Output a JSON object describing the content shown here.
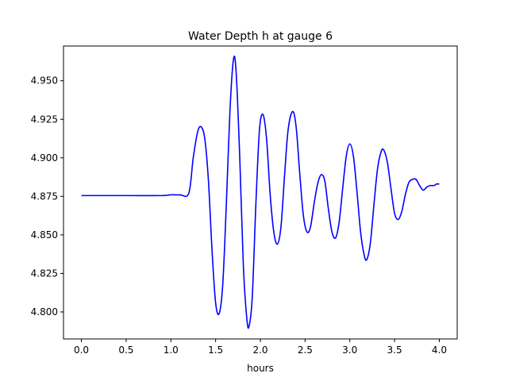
{
  "chart_data": {
    "type": "line",
    "title": "Water Depth h at gauge 6",
    "xlabel": "hours",
    "ylabel": "",
    "xlim": [
      -0.2,
      4.2
    ],
    "ylim": [
      4.7825,
      4.9725
    ],
    "xticks": [
      0.0,
      0.5,
      1.0,
      1.5,
      2.0,
      2.5,
      3.0,
      3.5,
      4.0
    ],
    "xtick_labels": [
      "0.0",
      "0.5",
      "1.0",
      "1.5",
      "2.0",
      "2.5",
      "3.0",
      "3.5",
      "4.0"
    ],
    "yticks": [
      4.8,
      4.825,
      4.85,
      4.875,
      4.9,
      4.925,
      4.95
    ],
    "ytick_labels": [
      "4.800",
      "4.825",
      "4.850",
      "4.875",
      "4.900",
      "4.925",
      "4.950"
    ],
    "grid": false,
    "series": [
      {
        "name": "",
        "color": "#0000ff",
        "points": [
          [
            0.0,
            4.8755
          ],
          [
            0.5,
            4.8755
          ],
          [
            0.9,
            4.8755
          ],
          [
            1.0,
            4.876
          ],
          [
            1.1,
            4.876
          ],
          [
            1.2,
            4.877
          ],
          [
            1.25,
            4.9
          ],
          [
            1.3,
            4.917
          ],
          [
            1.34,
            4.92
          ],
          [
            1.38,
            4.912
          ],
          [
            1.42,
            4.885
          ],
          [
            1.46,
            4.84
          ],
          [
            1.5,
            4.806
          ],
          [
            1.54,
            4.799
          ],
          [
            1.58,
            4.818
          ],
          [
            1.62,
            4.87
          ],
          [
            1.66,
            4.93
          ],
          [
            1.7,
            4.964
          ],
          [
            1.73,
            4.955
          ],
          [
            1.77,
            4.9
          ],
          [
            1.81,
            4.83
          ],
          [
            1.85,
            4.795
          ],
          [
            1.875,
            4.791
          ],
          [
            1.91,
            4.81
          ],
          [
            1.95,
            4.87
          ],
          [
            1.99,
            4.918
          ],
          [
            2.03,
            4.928
          ],
          [
            2.07,
            4.912
          ],
          [
            2.11,
            4.876
          ],
          [
            2.15,
            4.852
          ],
          [
            2.19,
            4.844
          ],
          [
            2.23,
            4.855
          ],
          [
            2.27,
            4.888
          ],
          [
            2.31,
            4.918
          ],
          [
            2.36,
            4.93
          ],
          [
            2.4,
            4.92
          ],
          [
            2.44,
            4.89
          ],
          [
            2.48,
            4.863
          ],
          [
            2.52,
            4.852
          ],
          [
            2.56,
            4.855
          ],
          [
            2.6,
            4.87
          ],
          [
            2.64,
            4.883
          ],
          [
            2.68,
            4.889
          ],
          [
            2.72,
            4.885
          ],
          [
            2.76,
            4.867
          ],
          [
            2.8,
            4.852
          ],
          [
            2.84,
            4.848
          ],
          [
            2.88,
            4.858
          ],
          [
            2.92,
            4.88
          ],
          [
            2.96,
            4.901
          ],
          [
            3.0,
            4.909
          ],
          [
            3.04,
            4.901
          ],
          [
            3.08,
            4.878
          ],
          [
            3.12,
            4.852
          ],
          [
            3.16,
            4.837
          ],
          [
            3.19,
            4.834
          ],
          [
            3.23,
            4.845
          ],
          [
            3.27,
            4.87
          ],
          [
            3.31,
            4.893
          ],
          [
            3.35,
            4.904
          ],
          [
            3.38,
            4.905
          ],
          [
            3.42,
            4.897
          ],
          [
            3.46,
            4.88
          ],
          [
            3.5,
            4.864
          ],
          [
            3.54,
            4.86
          ],
          [
            3.58,
            4.865
          ],
          [
            3.62,
            4.876
          ],
          [
            3.66,
            4.884
          ],
          [
            3.7,
            4.886
          ],
          [
            3.74,
            4.886
          ],
          [
            3.78,
            4.882
          ],
          [
            3.82,
            4.879
          ],
          [
            3.86,
            4.881
          ],
          [
            3.9,
            4.882
          ],
          [
            3.94,
            4.882
          ],
          [
            3.97,
            4.883
          ],
          [
            4.0,
            4.883
          ]
        ]
      }
    ]
  }
}
